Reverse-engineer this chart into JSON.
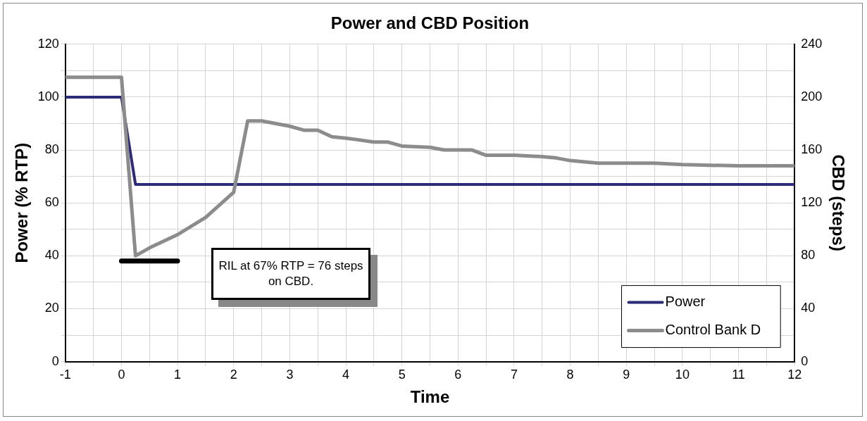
{
  "chart_data": {
    "type": "line",
    "title": "Power and CBD Position",
    "xlabel": "Time",
    "ylabel": "Power (% RTP)",
    "y2label": "CBD (steps)",
    "xlim": [
      -1,
      12
    ],
    "xticks": [
      -1,
      {
        "value": -0.5,
        "label": null
      },
      0,
      {
        "value": 0.5,
        "label": null
      },
      1,
      {
        "value": 1.5,
        "label": null
      },
      2,
      {
        "value": 2.5,
        "label": null
      },
      3,
      {
        "value": 3.5,
        "label": null
      },
      4,
      {
        "value": 4.5,
        "label": null
      },
      5,
      {
        "value": 5.5,
        "label": null
      },
      6,
      {
        "value": 6.5,
        "label": null
      },
      7,
      {
        "value": 7.5,
        "label": null
      },
      8,
      {
        "value": 8.5,
        "label": null
      },
      9,
      {
        "value": 9.5,
        "label": null
      },
      10,
      {
        "value": 10.5,
        "label": null
      },
      11,
      {
        "value": 11.5,
        "label": null
      },
      12
    ],
    "ylim": [
      0,
      120
    ],
    "yticks": [
      0,
      {
        "value": 10,
        "label": null
      },
      20,
      {
        "value": 30,
        "label": null
      },
      40,
      {
        "value": 50,
        "label": null
      },
      60,
      {
        "value": 70,
        "label": null
      },
      80,
      {
        "value": 90,
        "label": null
      },
      100,
      {
        "value": 110,
        "label": null
      },
      120
    ],
    "y2lim": [
      0,
      240
    ],
    "y2ticks": [
      0,
      40,
      80,
      120,
      160,
      200,
      240
    ],
    "series": [
      {
        "name": "Power",
        "color": "#2b2b78",
        "x": [
          -1,
          0,
          0.25,
          12
        ],
        "values": [
          100,
          100,
          67,
          67
        ]
      },
      {
        "name": "Control Bank D",
        "color": "#8c8c8c",
        "axis": "y2",
        "x": [
          -1,
          0,
          0.25,
          0.5,
          1,
          1.5,
          2,
          2.25,
          2.5,
          3,
          3.25,
          3.5,
          3.75,
          4,
          4.5,
          4.75,
          5,
          5.5,
          5.75,
          6.25,
          6.5,
          7,
          7.5,
          7.75,
          8,
          8.5,
          9.5,
          10,
          11,
          12
        ],
        "values": [
          215,
          215,
          80,
          86,
          96,
          109,
          128,
          182,
          182,
          178,
          175,
          175,
          170,
          169,
          166,
          166,
          163,
          162,
          160,
          160,
          156,
          156,
          155,
          154,
          152,
          150,
          150,
          149,
          148,
          148
        ]
      },
      {
        "color": "#000000",
        "axis": "y2",
        "x": [
          0,
          1
        ],
        "values": [
          76,
          76
        ]
      }
    ],
    "annotations": [
      "RIL at 67% RTP = 76 steps on CBD."
    ],
    "grid": true,
    "legend": "bottom right",
    "marker": "none",
    "line_style": "solid"
  }
}
